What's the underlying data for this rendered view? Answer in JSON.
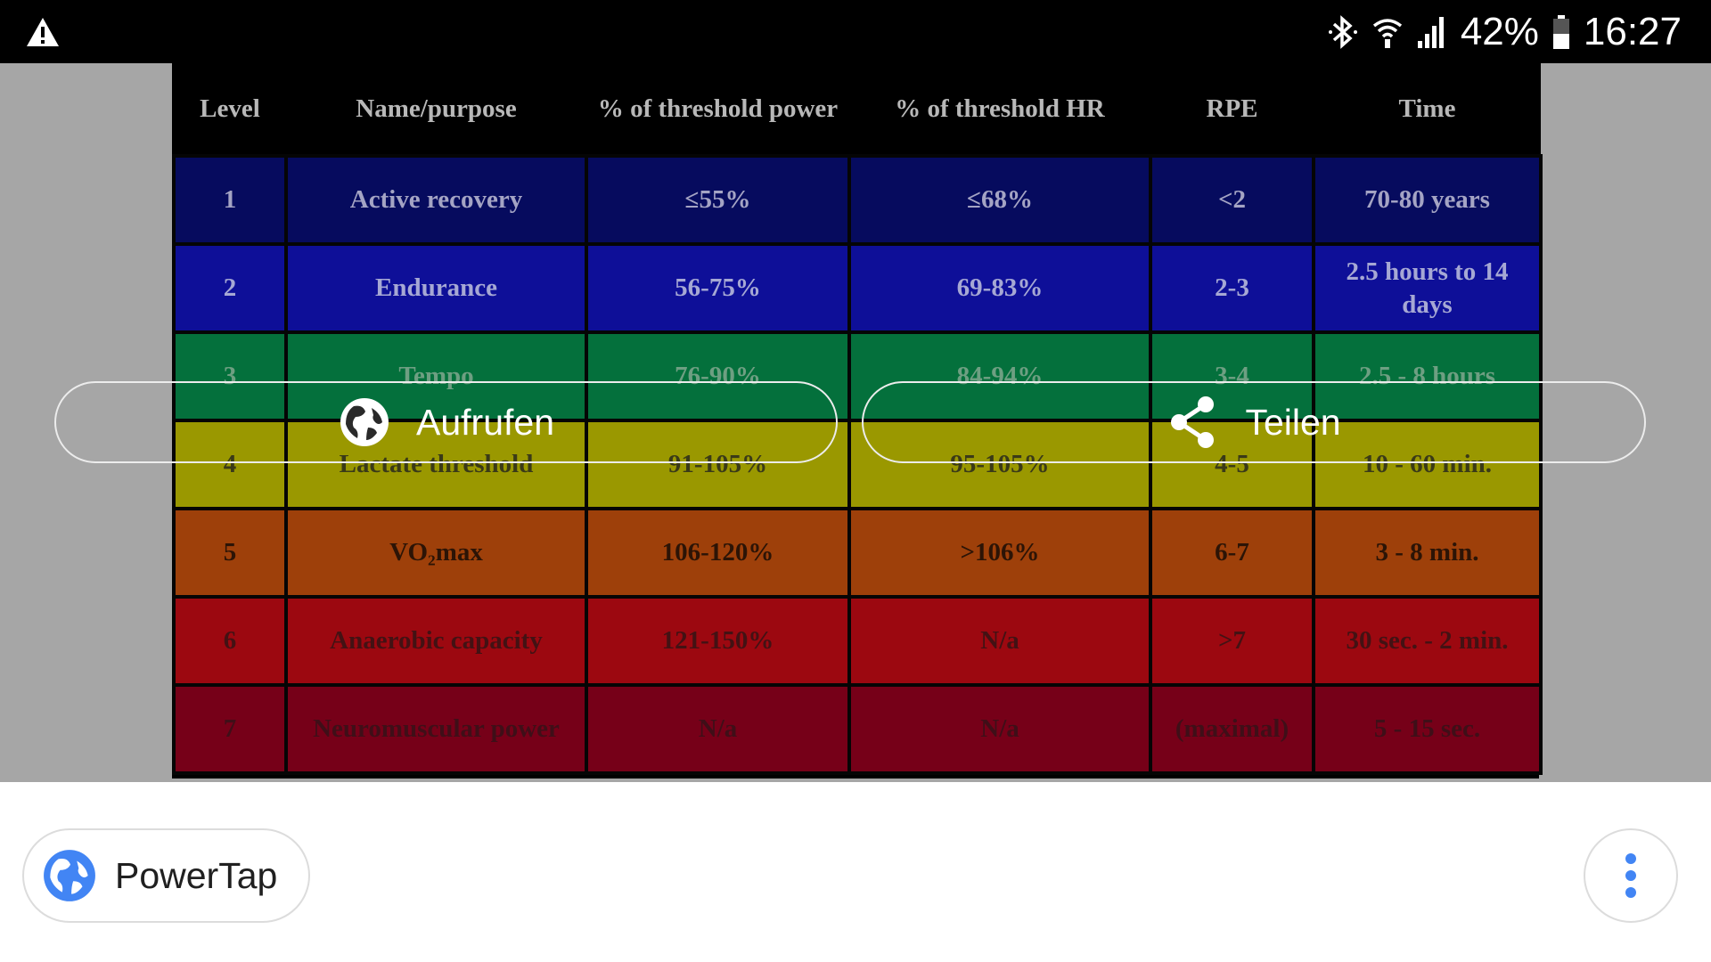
{
  "status_bar": {
    "battery": "42%",
    "time": "16:27",
    "icons": [
      "warning-icon",
      "bluetooth-icon",
      "wifi-icon",
      "signal-icon",
      "battery-icon"
    ]
  },
  "table": {
    "headers": [
      "Level",
      "Name/purpose",
      "% of threshold power",
      "% of threshold HR",
      "RPE",
      "Time"
    ],
    "rows": [
      [
        "1",
        "Active recovery",
        "≤55%",
        "≤68%",
        "<2",
        "70-80 years"
      ],
      [
        "2",
        "Endurance",
        "56-75%",
        "69-83%",
        "2-3",
        "2.5 hours to 14 days"
      ],
      [
        "3",
        "Tempo",
        "76-90%",
        "84-94%",
        "3-4",
        "2.5 - 8 hours"
      ],
      [
        "4",
        "Lactate threshold",
        "91-105%",
        "95-105%",
        "4-5",
        "10 - 60 min."
      ],
      [
        "5",
        "VO₂max",
        "106-120%",
        ">106%",
        "6-7",
        "3 - 8 min."
      ],
      [
        "6",
        "Anaerobic capacity",
        "121-150%",
        "N/a",
        ">7",
        "30 sec. - 2 min."
      ],
      [
        "7",
        "Neuromuscular power",
        "N/a",
        "N/a",
        "(maximal)",
        "5 - 15 sec."
      ]
    ]
  },
  "overlay": {
    "visit_label": "Aufrufen",
    "share_label": "Teilen"
  },
  "source": {
    "label": "PowerTap"
  },
  "colors": {
    "accent_blue": "#4285f4"
  }
}
